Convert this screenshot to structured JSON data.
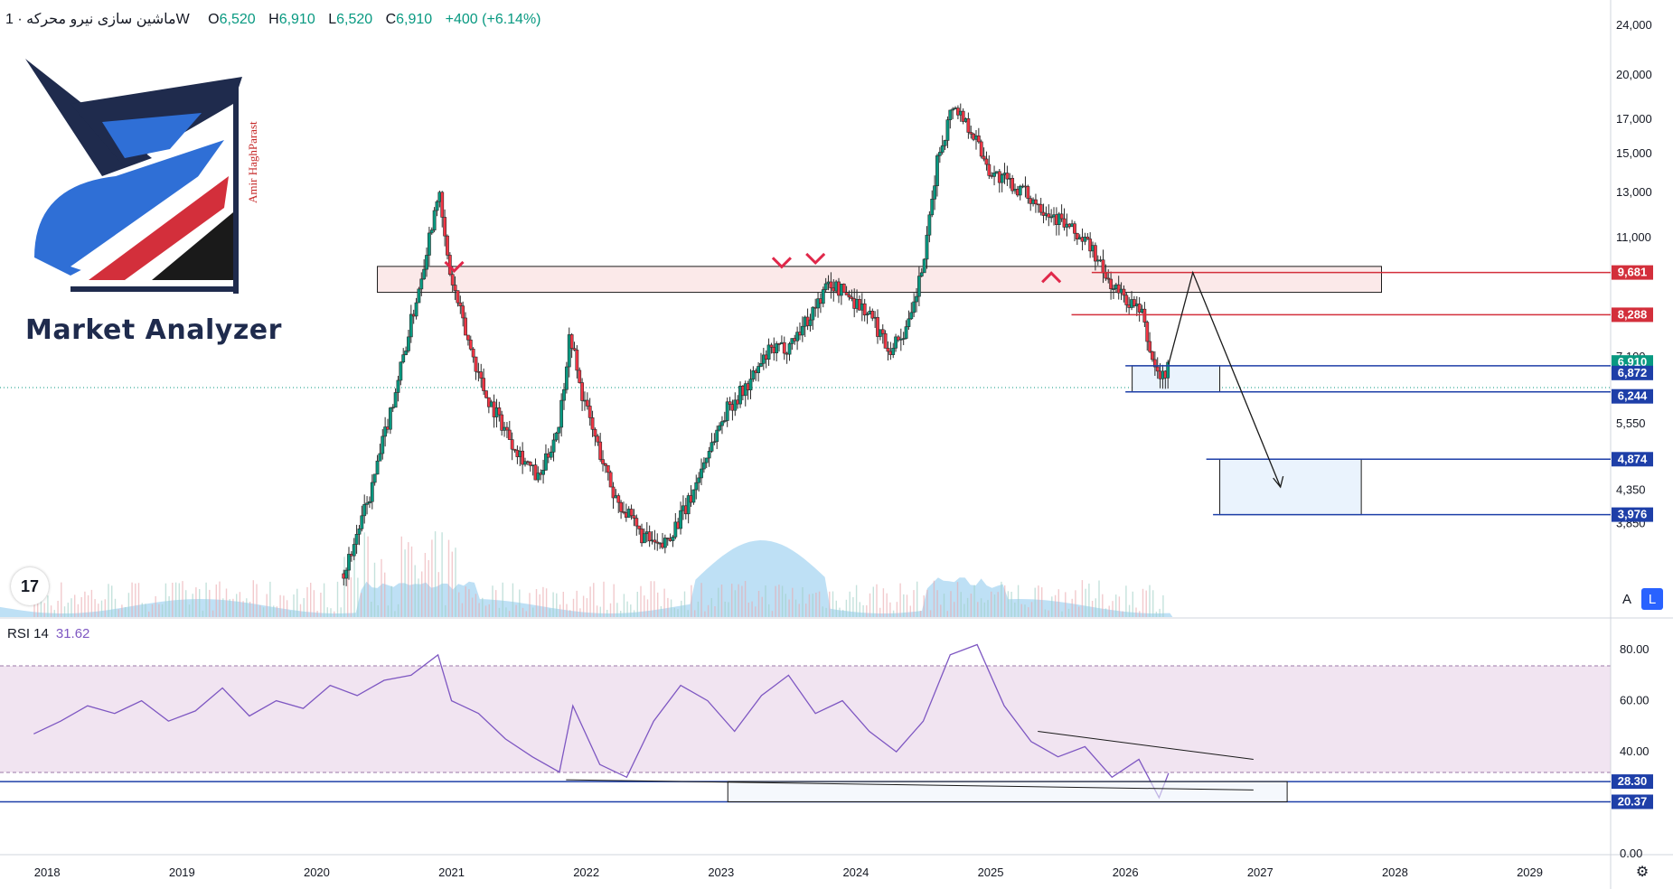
{
  "header": {
    "symbol": "ماشین سازی نیرو محرکه · 1W",
    "open_label": "O",
    "open": "6,520",
    "high_label": "H",
    "high": "6,910",
    "low_label": "L",
    "low": "6,520",
    "close_label": "C",
    "close": "6,910",
    "change": "+400 (+6.14%)"
  },
  "rsi_header": {
    "label": "RSI 14",
    "value": "31.62"
  },
  "logo": {
    "title": "Market Analyzer",
    "author": "Amir HaghParast"
  },
  "tv_logo_text": "17",
  "buttons": {
    "auto": "A",
    "log": "L",
    "settings": "⚙"
  },
  "colors": {
    "up": "#089981",
    "down": "#f23645",
    "candle_body": "#2b2b2b",
    "blue_line": "#1e3fa8",
    "red_line": "#d32f3b",
    "rsi_line": "#7e57c2",
    "rsi_band": "#f1e4f1",
    "volume": "#89c6ec"
  },
  "chart_data": [
    {
      "type": "candlestick",
      "timeframe": "1W",
      "x_ticks": [
        "2018",
        "2019",
        "2020",
        "2021",
        "2022",
        "2023",
        "2024",
        "2025",
        "2026",
        "2027",
        "2028",
        "2029"
      ],
      "y_ticks": [
        "24,000",
        "20,000",
        "17,000",
        "15,000",
        "13,000",
        "11,000",
        "7,100",
        "5,550",
        "4,350",
        "3,850"
      ],
      "price_scale": "log",
      "ylim": [
        3200,
        24500
      ],
      "price_tags": [
        {
          "label": "9,681",
          "color": "#d32f3b"
        },
        {
          "label": "8,288",
          "color": "#d32f3b"
        },
        {
          "label": "6,910",
          "color": "#089981"
        },
        {
          "label": "6,872",
          "color": "#1e3fa8"
        },
        {
          "label": "6,244",
          "color": "#1e3fa8"
        },
        {
          "label": "4,874",
          "color": "#1e3fa8"
        },
        {
          "label": "3,976",
          "color": "#1e3fa8"
        }
      ],
      "price_path": [
        [
          "2020.30",
          3200
        ],
        [
          "2020.50",
          4300
        ],
        [
          "2020.70",
          6500
        ],
        [
          "2020.85",
          9000
        ],
        [
          "2020.95",
          11500
        ],
        [
          "2021.00",
          13200
        ],
        [
          "2021.08",
          9800
        ],
        [
          "2021.20",
          7800
        ],
        [
          "2021.35",
          6200
        ],
        [
          "2021.55",
          5200
        ],
        [
          "2021.75",
          4500
        ],
        [
          "2021.90",
          5600
        ],
        [
          "2021.98",
          7800
        ],
        [
          "2022.05",
          6400
        ],
        [
          "2022.15",
          5400
        ],
        [
          "2022.30",
          4300
        ],
        [
          "2022.50",
          3700
        ],
        [
          "2022.65",
          3500
        ],
        [
          "2022.85",
          4100
        ],
        [
          "2023.00",
          5000
        ],
        [
          "2023.15",
          5900
        ],
        [
          "2023.30",
          6400
        ],
        [
          "2023.45",
          7200
        ],
        [
          "2023.60",
          7400
        ],
        [
          "2023.75",
          8200
        ],
        [
          "2023.90",
          9300
        ],
        [
          "2024.05",
          8900
        ],
        [
          "2024.20",
          8300
        ],
        [
          "2024.35",
          7300
        ],
        [
          "2024.50",
          8000
        ],
        [
          "2024.62",
          10500
        ],
        [
          "2024.70",
          14500
        ],
        [
          "2024.82",
          18000
        ],
        [
          "2024.95",
          16500
        ],
        [
          "2025.10",
          14000
        ],
        [
          "2025.30",
          13200
        ],
        [
          "2025.45",
          12500
        ],
        [
          "2025.60",
          11800
        ],
        [
          "2025.72",
          11200
        ],
        [
          "2025.85",
          10600
        ],
        [
          "2025.95",
          9500
        ],
        [
          "2026.05",
          9000
        ],
        [
          "2026.15",
          8600
        ],
        [
          "2026.22",
          8300
        ],
        [
          "2026.30",
          7000
        ],
        [
          "2026.37",
          6520
        ],
        [
          "2026.42",
          6910
        ]
      ],
      "projection": [
        [
          "2026.42",
          6910
        ],
        [
          "2026.60",
          9681
        ],
        [
          "2027.25",
          4400
        ]
      ],
      "resistance_markers": [
        {
          "x": "2021.12",
          "price": 9900
        },
        {
          "x": "2023.55",
          "price": 10050
        },
        {
          "x": "2023.80",
          "price": 10200
        },
        {
          "x": "2025.55",
          "price": 9500
        }
      ],
      "zones": [
        {
          "x_from": "2020.55",
          "x_to": "2028.00",
          "y_from": 9000,
          "y_to": 9900,
          "name": ""
        },
        {
          "x_from": "2026.15",
          "x_to": "2026.80",
          "y_from": 6244,
          "y_to": 6872,
          "name": ""
        },
        {
          "x_from": "2026.80",
          "x_to": "2027.85",
          "y_from": 3976,
          "y_to": 4874,
          "name": ""
        }
      ],
      "lines": [
        {
          "price": 9681,
          "x_from": "2025.85"
        },
        {
          "price": 8288,
          "x_from": "2025.70"
        },
        {
          "price": 6872,
          "x_from": "2026.10"
        },
        {
          "price": 6244,
          "x_from": "2026.10"
        },
        {
          "price": 4874,
          "x_from": "2026.70"
        },
        {
          "price": 3976,
          "x_from": "2026.75"
        }
      ]
    },
    {
      "type": "line",
      "name": "RSI 14",
      "y_ticks": [
        "80.00",
        "60.00",
        "40.00",
        "0.00"
      ],
      "ylim": [
        0,
        85
      ],
      "band": [
        30,
        70
      ],
      "levels": [
        {
          "label": "28.30",
          "value": 28.3
        },
        {
          "label": "20.37",
          "value": 20.37
        }
      ],
      "rsi_zone": {
        "x_from": "2023.15",
        "x_to": "2027.30",
        "y_from": 20.37,
        "y_to": 28.3
      },
      "trendlines": [
        [
          [
            "2025.45",
            48
          ],
          [
            "2027.05",
            37
          ]
        ],
        [
          [
            "2021.95",
            29
          ],
          [
            "2027.05",
            25
          ]
        ]
      ],
      "values_x": [
        "2018.00",
        "2018.20",
        "2018.40",
        "2018.60",
        "2018.80",
        "2019.00",
        "2019.20",
        "2019.40",
        "2019.60",
        "2019.80",
        "2020.00",
        "2020.20",
        "2020.40",
        "2020.60",
        "2020.80",
        "2021.00",
        "2021.10",
        "2021.30",
        "2021.50",
        "2021.70",
        "2021.90",
        "2022.00",
        "2022.20",
        "2022.40",
        "2022.60",
        "2022.80",
        "2023.00",
        "2023.20",
        "2023.40",
        "2023.60",
        "2023.80",
        "2024.00",
        "2024.20",
        "2024.40",
        "2024.60",
        "2024.80",
        "2025.00",
        "2025.20",
        "2025.40",
        "2025.60",
        "2025.80",
        "2026.00",
        "2026.20",
        "2026.35",
        "2026.42"
      ],
      "values": [
        47,
        52,
        58,
        55,
        60,
        52,
        56,
        65,
        54,
        60,
        57,
        66,
        62,
        68,
        70,
        78,
        60,
        55,
        45,
        38,
        32,
        58,
        35,
        30,
        52,
        66,
        60,
        48,
        62,
        70,
        55,
        60,
        48,
        40,
        52,
        78,
        82,
        58,
        44,
        38,
        42,
        30,
        37,
        22,
        31.62
      ]
    }
  ]
}
